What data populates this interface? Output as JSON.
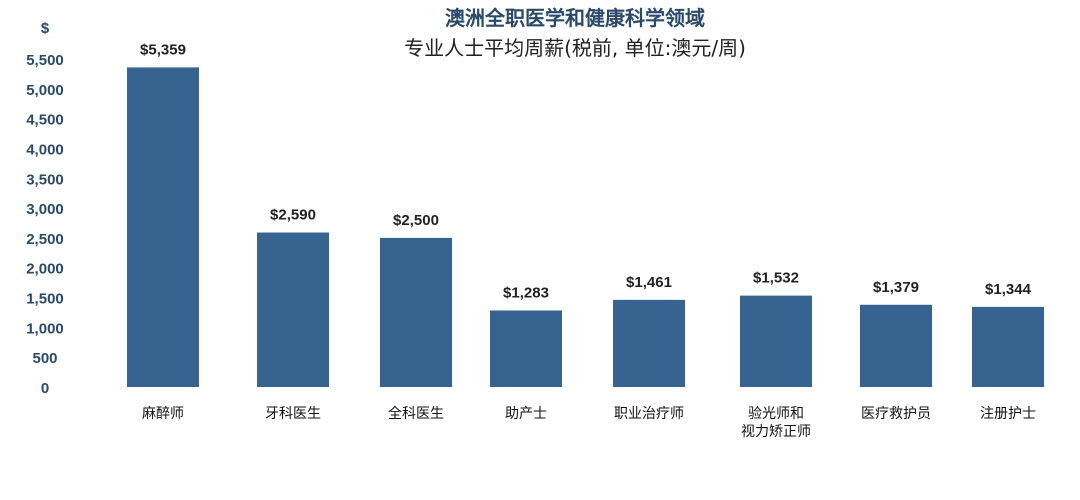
{
  "chart_data": {
    "type": "bar",
    "title": "澳洲全职医学和健康科学领域",
    "subtitle": "专业人士平均周薪(税前, 单位:澳元/周)",
    "ylabel": "$",
    "ylim": [
      0,
      5500
    ],
    "yticks": [
      "0",
      "500",
      "1,000",
      "1,500",
      "2,000",
      "2,500",
      "3,000",
      "3,500",
      "4,000",
      "4,500",
      "5,000",
      "5,500"
    ],
    "categories": [
      [
        "麻醉师"
      ],
      [
        "牙科医生"
      ],
      [
        "全科医生"
      ],
      [
        "助产士"
      ],
      [
        "职业治疗师"
      ],
      [
        "验光师和",
        "视力矫正师"
      ],
      [
        "医疗救护员"
      ],
      [
        "注册护士"
      ]
    ],
    "values": [
      5359,
      2590,
      2500,
      1283,
      1461,
      1532,
      1379,
      1344
    ],
    "value_labels": [
      "$5,359",
      "$2,590",
      "$2,500",
      "$1,283",
      "$1,461",
      "$1,532",
      "$1,379",
      "$1,344"
    ],
    "bar_color": "#36638f",
    "grid": false,
    "legend": "none"
  }
}
